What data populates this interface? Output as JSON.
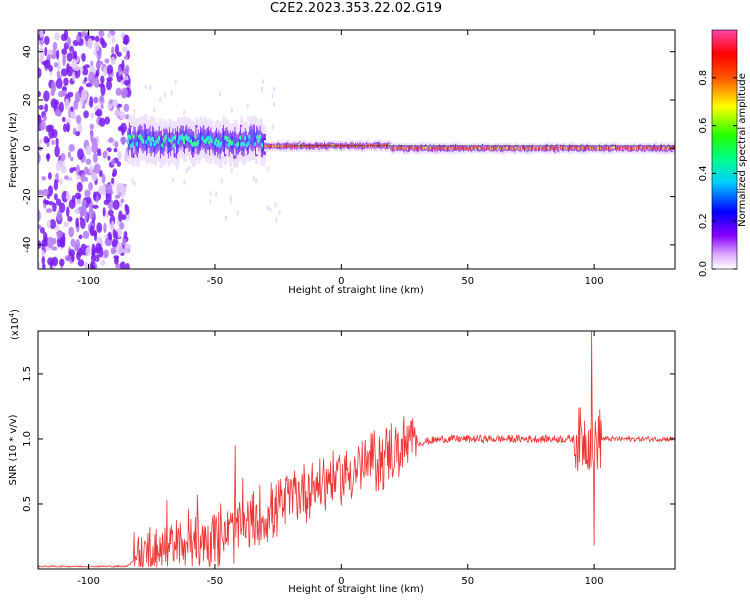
{
  "title": "C2E2.2023.353.22.02.G19",
  "chart_data": [
    {
      "type": "heatmap",
      "xlabel": "Height of straight line (km)",
      "ylabel": "Frequency (Hz)",
      "xlim": [
        -120,
        132
      ],
      "ylim": [
        -50,
        49
      ],
      "x_ticks": [
        -100,
        -50,
        0,
        50,
        100
      ],
      "y_ticks": [
        -40,
        -20,
        0,
        20,
        40
      ],
      "x_tick_labels": [
        "-100",
        "-50",
        "0",
        "50",
        "100"
      ],
      "y_tick_labels": [
        "-40",
        "-20",
        "0",
        "20",
        "40"
      ],
      "colorbar": {
        "label": "Normalized spectral amplitude",
        "range": [
          0.0,
          1.0
        ],
        "ticks": [
          0.0,
          0.2,
          0.4,
          0.6,
          0.8
        ],
        "tick_labels": [
          "0.0",
          "0.2",
          "0.4",
          "0.6",
          "0.8"
        ],
        "colormap": "rainbow (white-violet-blue-cyan-green-yellow-red-magenta)"
      },
      "noise_region_x": [
        -120,
        -84
      ],
      "signal_segments": [
        {
          "x": [
            -84,
            -30
          ],
          "frequency_center": 3,
          "spread_hz": 8,
          "peak_amplitude": 0.5
        },
        {
          "x": [
            -30,
            20
          ],
          "frequency_center": 1,
          "spread_hz": 2,
          "peak_amplitude": 0.85
        },
        {
          "x": [
            20,
            132
          ],
          "frequency_center": 0,
          "spread_hz": 2,
          "peak_amplitude": 0.9
        }
      ]
    },
    {
      "type": "line",
      "xlabel": "Height of straight line (km)",
      "ylabel": "SNR (10 * v/v)",
      "y_multiplier_label": "(x10",
      "y_multiplier_exp": "4",
      "y_multiplier_close": ")",
      "xlim": [
        -120,
        132
      ],
      "ylim": [
        0,
        1.83
      ],
      "x_ticks": [
        -100,
        -50,
        0,
        50,
        100
      ],
      "y_ticks": [
        0.5,
        1.0,
        1.5
      ],
      "x_tick_labels": [
        "-100",
        "-50",
        "0",
        "50",
        "100"
      ],
      "y_tick_labels": [
        "0.5",
        "1.0",
        "1.5"
      ],
      "series_color": "#ee3333",
      "envelope": [
        {
          "x": -120,
          "y": 0.02
        },
        {
          "x": -85,
          "y": 0.02
        },
        {
          "x": -80,
          "y": 0.1
        },
        {
          "x": -70,
          "y": 0.15
        },
        {
          "x": -60,
          "y": 0.2
        },
        {
          "x": -50,
          "y": 0.25
        },
        {
          "x": -40,
          "y": 0.3
        },
        {
          "x": -30,
          "y": 0.4
        },
        {
          "x": -20,
          "y": 0.55
        },
        {
          "x": -10,
          "y": 0.65
        },
        {
          "x": 0,
          "y": 0.72
        },
        {
          "x": 10,
          "y": 0.8
        },
        {
          "x": 20,
          "y": 0.9
        },
        {
          "x": 30,
          "y": 0.97
        },
        {
          "x": 40,
          "y": 1.0
        },
        {
          "x": 60,
          "y": 1.0
        },
        {
          "x": 90,
          "y": 1.0
        },
        {
          "x": 96,
          "y": 1.0
        },
        {
          "x": 132,
          "y": 1.0
        }
      ],
      "peaks": [
        {
          "x": -69,
          "y": 0.53
        },
        {
          "x": -57,
          "y": 0.57
        },
        {
          "x": -42,
          "y": 0.95
        },
        {
          "x": -39,
          "y": 0.7
        },
        {
          "x": 99,
          "y": 1.83
        },
        {
          "x": 100,
          "y": 0.18
        }
      ]
    }
  ]
}
